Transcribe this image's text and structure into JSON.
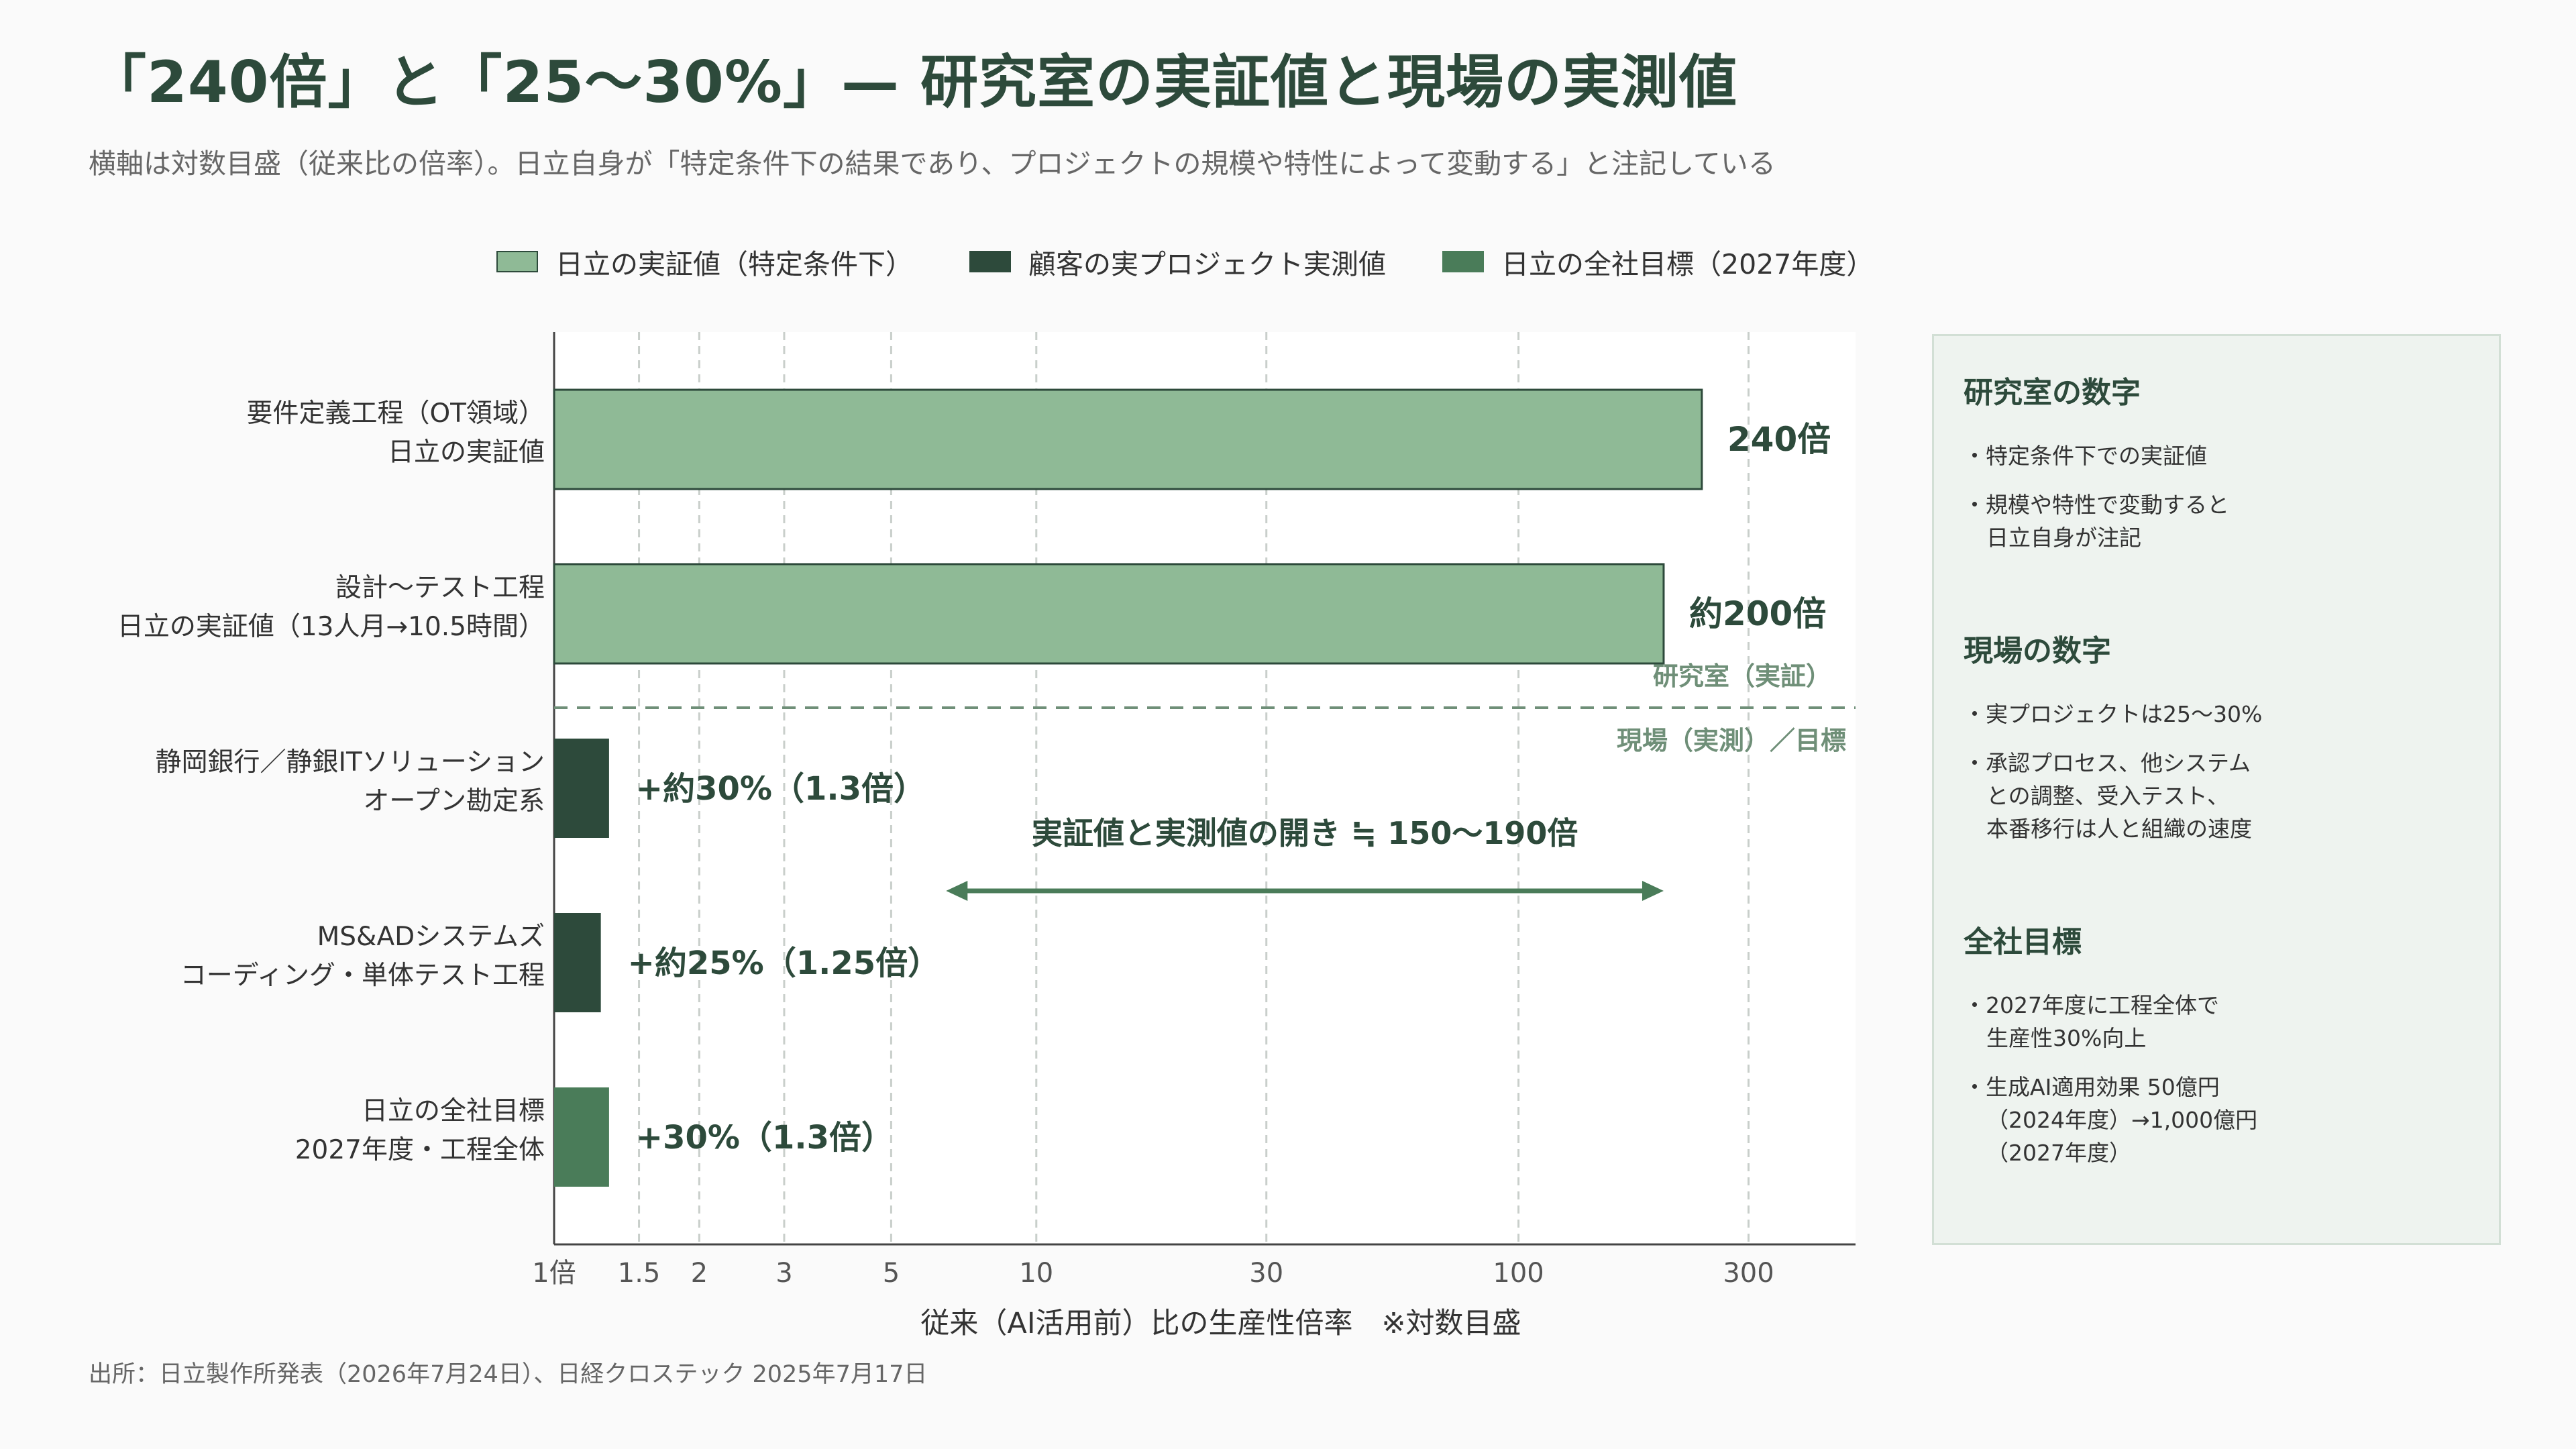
{
  "header": {
    "title": "「240倍」と「25〜30%」— 研究室の実証値と現場の実測値",
    "subtitle": "横軸は対数目盛（従来比の倍率）。日立自身が「特定条件下の結果であり、プロジェクトの規模や特性によって変動する」と注記している"
  },
  "legend": {
    "items": [
      {
        "label": "日立の実証値（特定条件下）",
        "color": "#8fba96"
      },
      {
        "label": "顧客の実プロジェクト実測値",
        "color": "#2d4a3b"
      },
      {
        "label": "日立の全社目標（2027年度）",
        "color": "#4a7c59"
      }
    ]
  },
  "chart_data": {
    "type": "bar",
    "orientation": "horizontal",
    "x_scale": "log",
    "xlim": [
      1,
      500
    ],
    "xlabel": "従来（AI活用前）比の生産性倍率　※対数目盛",
    "x_ticks": [
      1,
      1.5,
      2,
      3,
      5,
      10,
      30,
      100,
      300
    ],
    "x_tick_labels": [
      "1倍",
      "1.5",
      "2",
      "3",
      "5",
      "10",
      "30",
      "100",
      "300"
    ],
    "grid": "vertical dashed",
    "bars": [
      {
        "category_lines": [
          "要件定義工程（OT領域）",
          "日立の実証値"
        ],
        "value": 240,
        "value_label": "240倍",
        "group": "lab"
      },
      {
        "category_lines": [
          "設計〜テスト工程",
          "日立の実証値（13人月→10.5時間）"
        ],
        "value": 200,
        "value_label": "約200倍",
        "group": "lab"
      },
      {
        "category_lines": [
          "静岡銀行／静銀ITソリューション",
          "オープン勘定系"
        ],
        "value": 1.3,
        "value_label": "+約30%（1.3倍）",
        "group": "field"
      },
      {
        "category_lines": [
          "MS&ADシステムズ",
          "コーディング・単体テスト工程"
        ],
        "value": 1.25,
        "value_label": "+約25%（1.25倍）",
        "group": "field"
      },
      {
        "category_lines": [
          "日立の全社目標",
          "2027年度・工程全体"
        ],
        "value": 1.3,
        "value_label": "+30%（1.3倍）",
        "group": "target"
      }
    ],
    "group_colors": {
      "lab": "#8fba96",
      "field": "#2d4a3b",
      "target": "#4a7c59"
    },
    "divider": {
      "label_above": "研究室（実証）",
      "label_below": "現場（実測）／目標"
    },
    "gap_annotation": {
      "label": "実証値と実測値の開き ≒ 150〜190倍",
      "from": 6.5,
      "to": 200
    }
  },
  "side_panel": {
    "sections": [
      {
        "heading": "研究室の数字",
        "items": [
          "・特定条件下での実証値",
          "・規模や特性で変動すると\n日立自身が注記"
        ]
      },
      {
        "heading": "現場の数字",
        "items": [
          "・実プロジェクトは25〜30%",
          "・承認プロセス、他システム\nとの調整、受入テスト、\n本番移行は人と組織の速度"
        ]
      },
      {
        "heading": "全社目標",
        "items": [
          "・2027年度に工程全体で\n生産性30%向上",
          "・生成AI適用効果 50億円\n（2024年度）→1,000億円\n（2027年度）"
        ]
      }
    ]
  },
  "footer": {
    "source": "出所：日立製作所発表（2026年7月24日）、日経クロステック 2025年7月17日"
  }
}
